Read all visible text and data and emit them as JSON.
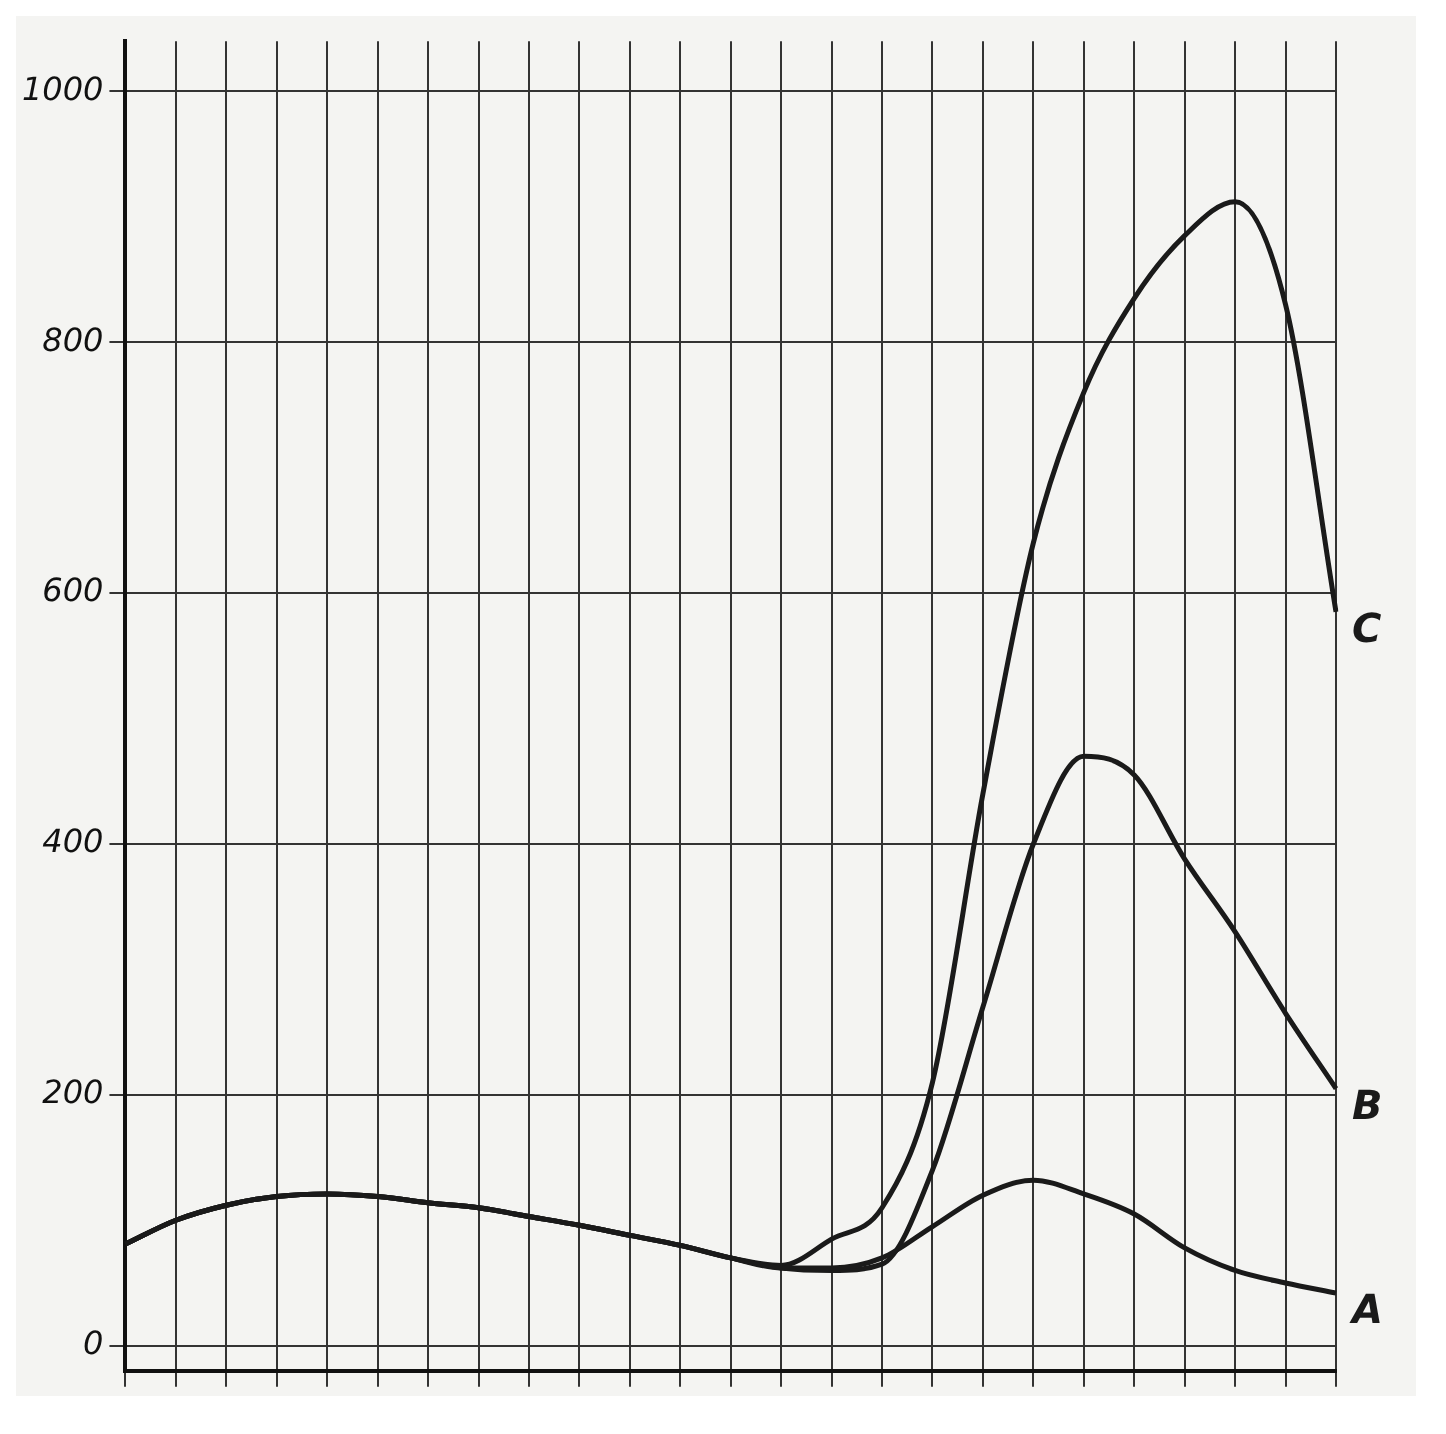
{
  "chart_data": {
    "type": "line",
    "categories": [
      null,
      null,
      null,
      null,
      null,
      null,
      null,
      null,
      null,
      null,
      null,
      null,
      null,
      null,
      null,
      null,
      null,
      null,
      null,
      null,
      null,
      null,
      null,
      null,
      null
    ],
    "series": [
      {
        "name": "A",
        "color": "#1a1a1a",
        "values": [
          81,
          100,
          112,
          119,
          121,
          119,
          114,
          110,
          103,
          96,
          88,
          80,
          70,
          62,
          62,
          70,
          95,
          120,
          132,
          121,
          105,
          78,
          60,
          50,
          42
        ]
      },
      {
        "name": "B",
        "color": "#1a1a1a",
        "values": [
          81,
          100,
          112,
          119,
          121,
          119,
          114,
          110,
          103,
          96,
          88,
          80,
          70,
          62,
          60,
          65,
          140,
          270,
          400,
          470,
          455,
          388,
          330,
          265,
          205
        ]
      },
      {
        "name": "C",
        "color": "#1a1a1a",
        "values": [
          81,
          100,
          112,
          119,
          121,
          119,
          114,
          110,
          103,
          96,
          88,
          80,
          70,
          64,
          85,
          110,
          210,
          440,
          640,
          760,
          835,
          885,
          912,
          830,
          585
        ]
      }
    ],
    "ylim": [
      -20,
      1040
    ],
    "yticks": [
      0,
      200,
      400,
      600,
      800,
      1000
    ],
    "grid": true,
    "legend": false,
    "marker": "none",
    "line_style": "solid",
    "tick_labels": "y"
  }
}
